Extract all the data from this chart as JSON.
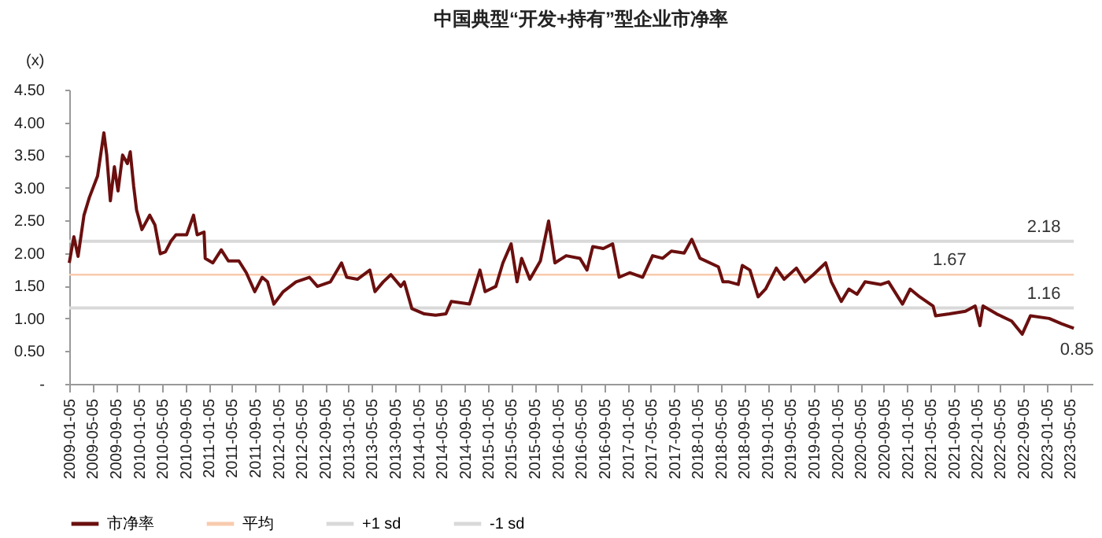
{
  "chart_data": {
    "type": "line",
    "title": "中国典型“开发+持有”型企业市净率",
    "ylabel": "(x)",
    "ylim": [
      0,
      4.5
    ],
    "yticks": [
      {
        "value": 0,
        "label": "-"
      },
      {
        "value": 0.5,
        "label": "0.50"
      },
      {
        "value": 1,
        "label": "1.00"
      },
      {
        "value": 1.5,
        "label": "1.50"
      },
      {
        "value": 2,
        "label": "2.00"
      },
      {
        "value": 2.5,
        "label": "2.50"
      },
      {
        "value": 3,
        "label": "3.00"
      },
      {
        "value": 3.5,
        "label": "3.50"
      },
      {
        "value": 4,
        "label": "4.00"
      },
      {
        "value": 4.5,
        "label": "4.50"
      }
    ],
    "xlim": [
      "2009-01-05",
      "2023-09-01"
    ],
    "xticks": [
      "2009-01-05",
      "2009-05-05",
      "2009-09-05",
      "2010-01-05",
      "2010-05-05",
      "2010-09-05",
      "2011-01-05",
      "2011-05-05",
      "2011-09-05",
      "2012-01-05",
      "2012-05-05",
      "2012-09-05",
      "2013-01-05",
      "2013-05-05",
      "2013-09-05",
      "2014-01-05",
      "2014-05-05",
      "2014-09-05",
      "2015-01-05",
      "2015-05-05",
      "2015-09-05",
      "2016-01-05",
      "2016-05-05",
      "2016-09-05",
      "2017-01-05",
      "2017-05-05",
      "2017-09-05",
      "2018-01-05",
      "2018-05-05",
      "2018-09-05",
      "2019-01-05",
      "2019-05-05",
      "2019-09-05",
      "2020-01-05",
      "2020-05-05",
      "2020-09-05",
      "2021-01-05",
      "2021-05-05",
      "2021-09-05",
      "2022-01-05",
      "2022-05-05",
      "2022-09-05",
      "2023-01-05",
      "2023-05-05"
    ],
    "legend": "bottom",
    "grid": false,
    "series": [
      {
        "name": "市净率",
        "color": "#6b0f0f",
        "x": [
          "2009-01-05",
          "2009-01-29",
          "2009-02-20",
          "2009-03-23",
          "2009-04-20",
          "2009-06-02",
          "2009-07-05",
          "2009-07-20",
          "2009-08-08",
          "2009-08-29",
          "2009-09-17",
          "2009-10-11",
          "2009-11-05",
          "2009-11-20",
          "2009-12-08",
          "2009-12-23",
          "2010-01-20",
          "2010-03-02",
          "2010-03-29",
          "2010-04-26",
          "2010-05-23",
          "2010-06-20",
          "2010-07-17",
          "2010-09-11",
          "2010-10-17",
          "2010-11-05",
          "2010-12-11",
          "2010-12-17",
          "2011-01-26",
          "2011-03-11",
          "2011-04-17",
          "2011-06-11",
          "2011-07-20",
          "2011-09-02",
          "2011-10-11",
          "2011-11-08",
          "2011-12-11",
          "2012-01-29",
          "2012-04-05",
          "2012-06-14",
          "2012-07-26",
          "2012-10-02",
          "2012-11-29",
          "2012-12-26",
          "2013-02-20",
          "2013-04-26",
          "2013-05-23",
          "2013-07-05",
          "2013-08-14",
          "2013-10-05",
          "2013-10-23",
          "2013-12-02",
          "2014-02-05",
          "2014-04-05",
          "2014-05-29",
          "2014-06-26",
          "2014-09-29",
          "2014-11-23",
          "2014-12-20",
          "2015-02-14",
          "2015-03-23",
          "2015-05-05",
          "2015-06-05",
          "2015-06-29",
          "2015-08-11",
          "2015-10-05",
          "2015-11-17",
          "2015-12-20",
          "2016-02-17",
          "2016-04-29",
          "2016-06-05",
          "2016-07-05",
          "2016-08-29",
          "2016-10-17",
          "2016-11-20",
          "2017-01-14",
          "2017-03-23",
          "2017-05-14",
          "2017-07-05",
          "2017-08-20",
          "2017-10-26",
          "2017-12-05",
          "2018-01-17",
          "2018-04-23",
          "2018-05-17",
          "2018-06-17",
          "2018-08-05",
          "2018-08-26",
          "2018-10-05",
          "2018-11-17",
          "2018-12-26",
          "2019-02-20",
          "2019-04-02",
          "2019-06-05",
          "2019-07-20",
          "2019-08-29",
          "2019-11-05",
          "2019-12-05",
          "2020-01-26",
          "2020-03-05",
          "2020-04-17",
          "2020-05-29",
          "2020-08-20",
          "2020-09-29",
          "2020-12-11",
          "2021-01-20",
          "2021-03-11",
          "2021-05-20",
          "2021-06-02",
          "2021-08-14",
          "2021-11-05",
          "2021-12-26",
          "2022-01-20",
          "2022-02-05",
          "2022-04-17",
          "2022-07-05",
          "2022-08-29",
          "2022-10-11",
          "2023-01-17",
          "2023-03-23",
          "2023-05-26"
        ],
        "values": [
          1.85,
          2.25,
          1.95,
          2.58,
          2.85,
          3.18,
          3.84,
          3.5,
          2.8,
          3.32,
          2.95,
          3.5,
          3.37,
          3.55,
          3.02,
          2.66,
          2.36,
          2.58,
          2.43,
          1.99,
          2.02,
          2.18,
          2.28,
          2.28,
          2.58,
          2.28,
          2.32,
          1.92,
          1.85,
          2.05,
          1.88,
          1.88,
          1.7,
          1.41,
          1.63,
          1.56,
          1.22,
          1.41,
          1.56,
          1.63,
          1.49,
          1.56,
          1.85,
          1.63,
          1.6,
          1.74,
          1.41,
          1.56,
          1.67,
          1.49,
          1.56,
          1.15,
          1.07,
          1.05,
          1.07,
          1.26,
          1.22,
          1.74,
          1.41,
          1.49,
          1.85,
          2.14,
          1.56,
          1.92,
          1.6,
          1.88,
          2.49,
          1.85,
          1.96,
          1.92,
          1.74,
          2.1,
          2.07,
          2.14,
          1.63,
          1.7,
          1.63,
          1.96,
          1.92,
          2.03,
          2.0,
          2.21,
          1.92,
          1.79,
          1.56,
          1.56,
          1.52,
          1.81,
          1.74,
          1.33,
          1.45,
          1.77,
          1.6,
          1.77,
          1.56,
          1.66,
          1.85,
          1.56,
          1.26,
          1.45,
          1.37,
          1.56,
          1.52,
          1.56,
          1.22,
          1.45,
          1.33,
          1.19,
          1.04,
          1.07,
          1.11,
          1.19,
          0.89,
          1.19,
          1.07,
          0.96,
          0.76,
          1.04,
          1.0,
          0.92,
          0.85
        ],
        "value_labels": [
          null,
          null,
          null,
          null,
          null,
          null,
          null,
          null,
          null,
          null,
          null,
          null,
          null,
          null,
          null,
          null,
          null,
          null,
          null,
          null,
          null,
          null,
          null,
          null,
          null,
          null,
          null,
          null,
          null,
          null,
          null,
          null,
          null,
          null,
          null,
          null,
          null,
          null,
          null,
          null,
          null,
          null,
          null,
          null,
          null,
          null,
          null,
          null,
          null,
          null,
          null,
          null,
          null,
          null,
          null,
          null,
          null,
          null,
          null,
          null,
          null,
          null,
          null,
          null,
          null,
          null,
          null,
          null,
          null,
          null,
          null,
          null,
          null,
          null,
          null,
          null,
          null,
          null,
          null,
          null,
          null,
          null,
          null,
          null,
          null,
          null,
          null,
          null,
          null,
          null,
          null,
          null,
          null,
          null,
          null,
          null,
          null,
          null,
          null,
          null,
          null,
          null,
          null,
          null,
          null,
          null,
          null,
          null,
          null,
          null,
          null,
          null,
          null,
          null,
          null,
          null,
          null,
          null,
          null,
          null,
          "0.85"
        ]
      },
      {
        "name": "平均",
        "color": "#f8cbad",
        "x": [
          "2009-01-05",
          "2021-08-14",
          "2023-05-26"
        ],
        "values": [
          1.67,
          1.67,
          1.67
        ],
        "value_labels": [
          null,
          "1.67",
          null
        ]
      },
      {
        "name": "+1 sd",
        "color": "#d9d9d9",
        "x": [
          "2009-01-05",
          "2022-12-20",
          "2023-05-26"
        ],
        "values": [
          2.18,
          2.18,
          2.18
        ],
        "value_labels": [
          null,
          "2.18",
          null
        ]
      },
      {
        "name": "-1 sd",
        "color": "#d9d9d9",
        "x": [
          "2009-01-05",
          "2022-12-20",
          "2023-05-26"
        ],
        "values": [
          1.16,
          1.16,
          1.16
        ],
        "value_labels": [
          null,
          "1.16",
          null
        ]
      }
    ]
  }
}
